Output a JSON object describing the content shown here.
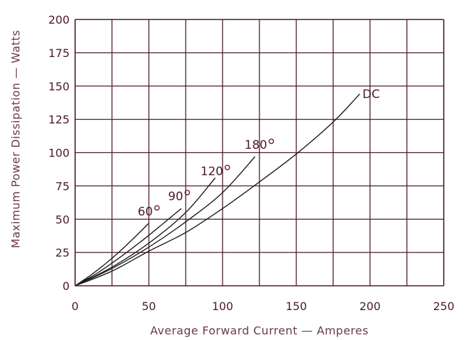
{
  "chart_data": {
    "type": "line",
    "xlabel": "Average Forward Current — Amperes",
    "ylabel": "Maximum Power Dissipation — Watts",
    "xlim": [
      0,
      250
    ],
    "ylim": [
      0,
      200
    ],
    "x_ticks": [
      "0",
      "50",
      "100",
      "150",
      "200",
      "250"
    ],
    "y_ticks": [
      "0",
      "25",
      "50",
      "75",
      "100",
      "125",
      "150",
      "175",
      "200"
    ],
    "grid": true,
    "series": [
      {
        "name": "60",
        "degree": true,
        "x": [
          0,
          10,
          20,
          30,
          40,
          50
        ],
        "y": [
          0,
          7.5,
          16,
          25.5,
          36,
          47
        ]
      },
      {
        "name": "90",
        "degree": true,
        "x": [
          0,
          15,
          30,
          45,
          60,
          72
        ],
        "y": [
          0,
          9.5,
          21,
          33.5,
          47,
          58
        ]
      },
      {
        "name": "120",
        "degree": true,
        "x": [
          0,
          25,
          50,
          75,
          95
        ],
        "y": [
          0,
          14,
          32,
          55,
          81
        ]
      },
      {
        "name": "180",
        "degree": true,
        "x": [
          0,
          25,
          50,
          75,
          100,
          122
        ],
        "y": [
          0,
          13,
          29,
          48,
          70,
          97
        ]
      },
      {
        "name": "DC",
        "degree": false,
        "x": [
          0,
          25,
          50,
          75,
          100,
          125,
          150,
          175,
          193
        ],
        "y": [
          0,
          11,
          26,
          40,
          58,
          78,
          99,
          123,
          144
        ]
      }
    ]
  }
}
